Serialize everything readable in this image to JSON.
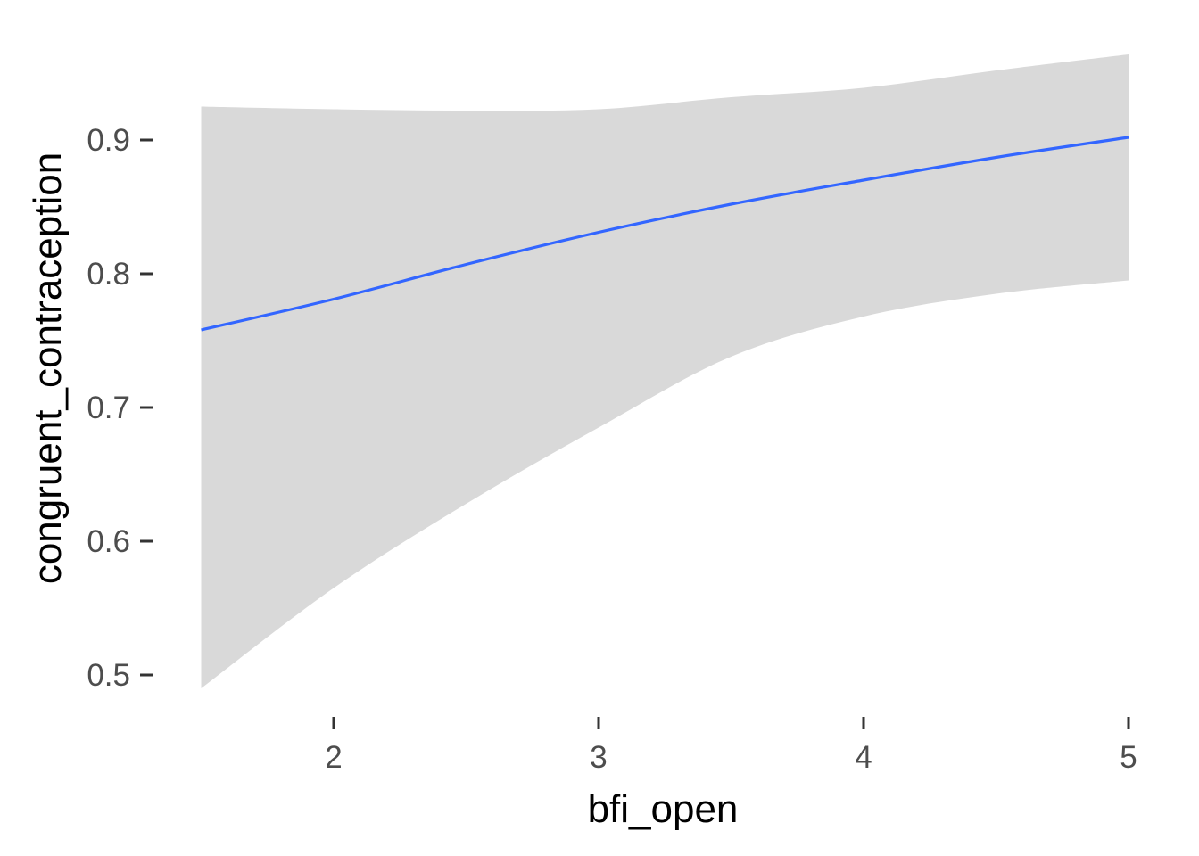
{
  "chart_data": {
    "type": "line",
    "title": "",
    "xlabel": "bfi_open",
    "ylabel": "congruent_contraception",
    "xlim": [
      1.5,
      5.0
    ],
    "ylim": [
      0.48,
      0.965
    ],
    "x_ticks": [
      2,
      3,
      4,
      5
    ],
    "y_ticks": [
      0.5,
      0.6,
      0.7,
      0.8,
      0.9
    ],
    "x_tick_labels": [
      "2",
      "3",
      "4",
      "5"
    ],
    "y_tick_labels": [
      "0.5",
      "0.6",
      "0.7",
      "0.8",
      "0.9"
    ],
    "grid": false,
    "legend": "none",
    "series": [
      {
        "x": [
          1.5,
          2.0,
          2.5,
          3.0,
          3.5,
          4.0,
          4.5,
          5.0
        ],
        "fit": [
          0.758,
          0.781,
          0.807,
          0.831,
          0.852,
          0.87,
          0.887,
          0.902
        ],
        "lower": [
          0.49,
          0.565,
          0.628,
          0.685,
          0.738,
          0.768,
          0.785,
          0.795
        ],
        "upper": [
          0.925,
          0.923,
          0.922,
          0.923,
          0.932,
          0.939,
          0.952,
          0.964
        ]
      }
    ],
    "colors": {
      "line": "#3366ff",
      "ribbon": "#d9d9d9",
      "tick_label": "#4d4d4d",
      "tick_mark": "#333333",
      "axis_title": "#000000"
    }
  }
}
